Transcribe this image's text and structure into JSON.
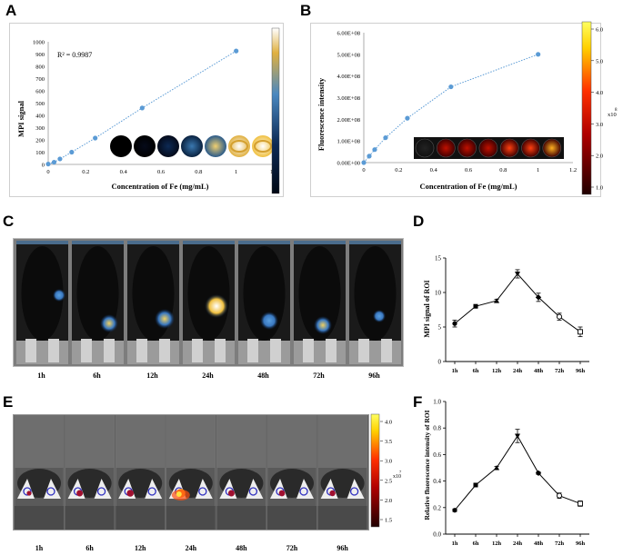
{
  "panels": {
    "a": "A",
    "b": "B",
    "c": "C",
    "d": "D",
    "e": "E",
    "f": "F"
  },
  "timepoints": [
    "1h",
    "6h",
    "12h",
    "24h",
    "48h",
    "72h",
    "96h"
  ],
  "colors": {
    "series": "#5b9bd5",
    "frame": "#cfcfcf"
  },
  "colorbar_b": {
    "ticks": [
      "6.0",
      "5.0",
      "4.0",
      "3.0",
      "2.0",
      "1.0"
    ],
    "unit": "x10",
    "unit_exp": "8"
  },
  "colorbar_e": {
    "ticks": [
      "4.0",
      "3.5",
      "3.0",
      "2.5",
      "2.0",
      "1.5"
    ],
    "unit": "x10",
    "unit_exp": "7"
  },
  "chart_data": [
    {
      "id": "A",
      "type": "scatter",
      "trendline": "dotted",
      "xlabel": "Concentration of Fe (mg/mL)",
      "ylabel": "MPI signal",
      "annotation": "R² = 0.9987",
      "xlim": [
        0,
        1.2
      ],
      "ylim": [
        0,
        1000
      ],
      "xticks": [
        "0",
        "0.2",
        "0.4",
        "0.6",
        "0.8",
        "1",
        "1.2"
      ],
      "yticks": [
        "0",
        "100",
        "200",
        "300",
        "400",
        "500",
        "600",
        "700",
        "800",
        "900",
        "1000"
      ],
      "x": [
        0,
        0.03125,
        0.0625,
        0.125,
        0.25,
        0.5,
        1
      ],
      "y": [
        3,
        18,
        45,
        100,
        215,
        460,
        925
      ]
    },
    {
      "id": "B",
      "type": "scatter",
      "trendline": "dotted",
      "xlabel": "Concentration of Fe (mg/mL)",
      "ylabel": "Fluorescence intensity",
      "xlim": [
        0,
        1.2
      ],
      "ylim": [
        0,
        600000000
      ],
      "xticks": [
        "0",
        "0.2",
        "0.4",
        "0.6",
        "0.8",
        "1",
        "1.2"
      ],
      "yticks": [
        "0.00E+00",
        "1.00E+08",
        "2.00E+08",
        "3.00E+08",
        "4.00E+08",
        "5.00E+08",
        "6.00E+08"
      ],
      "x": [
        0,
        0.03125,
        0.0625,
        0.125,
        0.25,
        0.5,
        1
      ],
      "y": [
        0,
        30000000,
        60000000,
        115000000,
        205000000,
        350000000,
        500000000
      ]
    },
    {
      "id": "D",
      "type": "line",
      "ylabel": "MPI signal of ROI",
      "categories": [
        "1h",
        "6h",
        "12h",
        "24h",
        "48h",
        "72h",
        "96h"
      ],
      "ylim": [
        0,
        15
      ],
      "yticks": [
        "0",
        "5",
        "10",
        "15"
      ],
      "values": [
        5.5,
        8.0,
        8.8,
        12.7,
        9.3,
        6.5,
        4.3
      ],
      "errors": [
        0.5,
        0.2,
        0.2,
        0.6,
        0.6,
        0.5,
        0.7
      ]
    },
    {
      "id": "F",
      "type": "line",
      "ylabel": "Relative fluorescence intensity of ROI",
      "categories": [
        "1h",
        "6h",
        "12h",
        "24h",
        "48h",
        "72h",
        "96h"
      ],
      "ylim": [
        0,
        1.0
      ],
      "yticks": [
        "0.0",
        "0.2",
        "0.4",
        "0.6",
        "0.8",
        "1.0"
      ],
      "values": [
        0.18,
        0.37,
        0.5,
        0.74,
        0.46,
        0.29,
        0.23
      ],
      "errors": [
        0.01,
        0.01,
        0.01,
        0.05,
        0.01,
        0.02,
        0.02
      ]
    }
  ]
}
